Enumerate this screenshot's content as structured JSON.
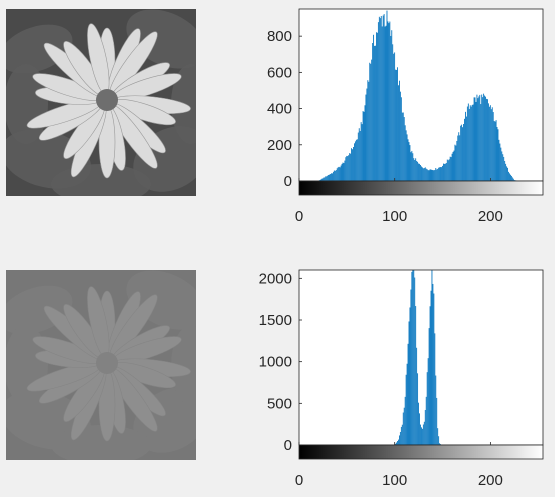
{
  "figure": {
    "background": "#f0f0f0",
    "axes_color": "#262626",
    "bar_color": "#0072bd"
  },
  "panels": [
    {
      "image": {
        "subject": "daisy flower with dark leaves",
        "contrast": "normal",
        "gray_bg": "#4a4a4a",
        "gray_leaf": "#5c5c5c",
        "gray_petal": "#dcdcdc",
        "gray_center": "#6e6e6e"
      }
    },
    {
      "image": {
        "subject": "daisy flower with dark leaves",
        "contrast": "low",
        "gray_bg": "#777777",
        "gray_leaf": "#7c7c7c",
        "gray_petal": "#8e8e8e",
        "gray_center": "#828282"
      }
    }
  ],
  "chart_data": [
    {
      "type": "bar",
      "series_name": "",
      "xlim": [
        0,
        255
      ],
      "ylim": [
        0,
        950
      ],
      "x_ticks": [
        0,
        100,
        200
      ],
      "y_ticks": [
        0,
        200,
        400,
        600,
        800
      ],
      "x_tick_labels": [
        "0",
        "100",
        "200"
      ],
      "y_tick_labels": [
        "0",
        "200",
        "400",
        "600",
        "800"
      ],
      "grid": false,
      "colorbar": "grayscale 0-255",
      "bins": "0-255",
      "profile_points": [
        [
          0,
          0
        ],
        [
          20,
          0
        ],
        [
          25,
          15
        ],
        [
          35,
          45
        ],
        [
          45,
          90
        ],
        [
          55,
          170
        ],
        [
          62,
          250
        ],
        [
          68,
          380
        ],
        [
          72,
          560
        ],
        [
          76,
          700
        ],
        [
          80,
          800
        ],
        [
          84,
          870
        ],
        [
          88,
          920
        ],
        [
          92,
          880
        ],
        [
          96,
          820
        ],
        [
          100,
          700
        ],
        [
          105,
          520
        ],
        [
          110,
          330
        ],
        [
          115,
          200
        ],
        [
          120,
          130
        ],
        [
          125,
          95
        ],
        [
          130,
          75
        ],
        [
          135,
          65
        ],
        [
          140,
          62
        ],
        [
          145,
          70
        ],
        [
          150,
          85
        ],
        [
          155,
          110
        ],
        [
          160,
          150
        ],
        [
          165,
          220
        ],
        [
          170,
          300
        ],
        [
          175,
          380
        ],
        [
          180,
          430
        ],
        [
          185,
          455
        ],
        [
          190,
          460
        ],
        [
          195,
          445
        ],
        [
          200,
          410
        ],
        [
          205,
          340
        ],
        [
          210,
          220
        ],
        [
          215,
          110
        ],
        [
          220,
          40
        ],
        [
          225,
          5
        ],
        [
          230,
          0
        ],
        [
          255,
          0
        ]
      ]
    },
    {
      "type": "bar",
      "series_name": "",
      "xlim": [
        0,
        255
      ],
      "ylim": [
        0,
        2100
      ],
      "x_ticks": [
        0,
        100,
        200
      ],
      "y_ticks": [
        0,
        500,
        1000,
        1500,
        2000
      ],
      "x_tick_labels": [
        "0",
        "100",
        "200"
      ],
      "y_tick_labels": [
        "0",
        "500",
        "1000",
        "1500",
        "2000"
      ],
      "grid": false,
      "colorbar": "grayscale 0-255",
      "bins": "0-255",
      "profile_points": [
        [
          0,
          0
        ],
        [
          100,
          0
        ],
        [
          104,
          60
        ],
        [
          108,
          250
        ],
        [
          111,
          600
        ],
        [
          113,
          1000
        ],
        [
          115,
          1500
        ],
        [
          117,
          2000
        ],
        [
          119,
          2250
        ],
        [
          121,
          2000
        ],
        [
          123,
          1200
        ],
        [
          125,
          500
        ],
        [
          127,
          250
        ],
        [
          129,
          200
        ],
        [
          131,
          300
        ],
        [
          133,
          600
        ],
        [
          135,
          1100
        ],
        [
          137,
          1700
        ],
        [
          139,
          2200
        ],
        [
          141,
          1800
        ],
        [
          143,
          900
        ],
        [
          145,
          200
        ],
        [
          147,
          20
        ],
        [
          149,
          0
        ],
        [
          255,
          0
        ]
      ]
    }
  ]
}
